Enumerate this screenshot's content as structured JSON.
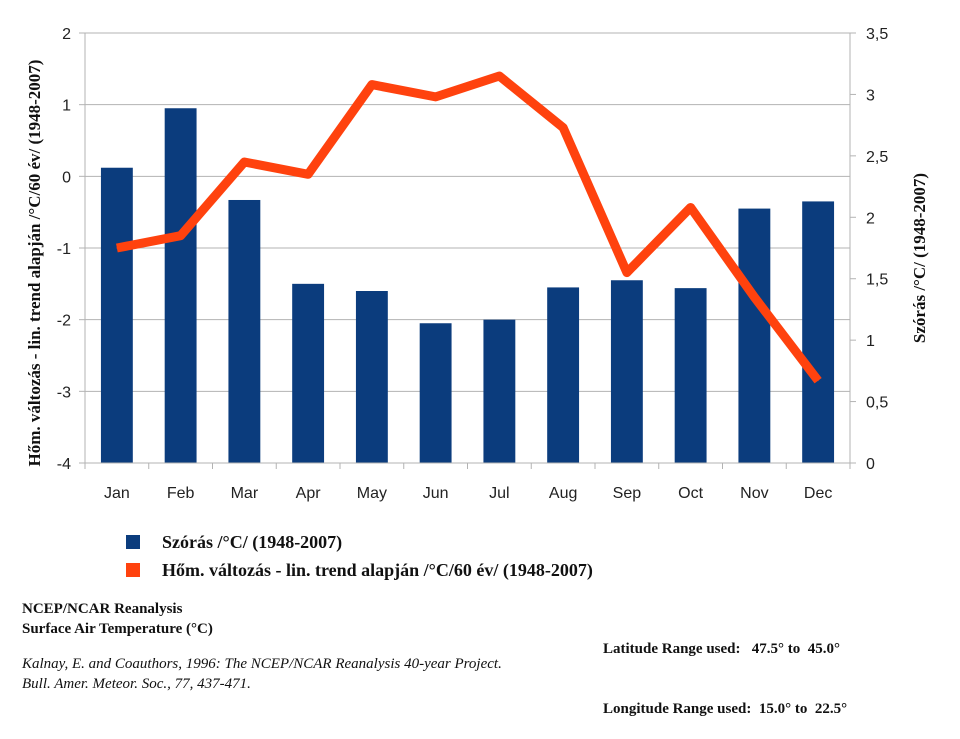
{
  "chart_data": {
    "type": "bar+line",
    "categories": [
      "Jan",
      "Feb",
      "Mar",
      "Apr",
      "May",
      "Jun",
      "Jul",
      "Aug",
      "Sep",
      "Oct",
      "Nov",
      "Dec"
    ],
    "series": [
      {
        "name": "Szórás /°C/ (1948-2007)",
        "type": "bar",
        "axis": "left",
        "color": "#0b3c7d",
        "values": [
          0.12,
          0.95,
          -0.33,
          -1.5,
          -1.6,
          -2.05,
          -2.0,
          -1.55,
          -1.45,
          -1.56,
          -0.45,
          -0.35
        ]
      },
      {
        "name": "Hőm. változás - lin. trend alapján /°C/60 év/ (1948-2007)",
        "type": "line",
        "axis": "right",
        "color": "#ff420e",
        "values": [
          1.75,
          1.85,
          2.45,
          2.35,
          3.08,
          2.98,
          3.15,
          2.73,
          1.55,
          2.08,
          1.35,
          0.67
        ]
      }
    ],
    "left_axis": {
      "title": "Hőm. változás - lin. trend alapján /°C/60 év/ (1948-2007)",
      "min": -4,
      "max": 2,
      "ticks": [
        "2",
        "1",
        "0",
        "-1",
        "-2",
        "-3",
        "-4"
      ]
    },
    "right_axis": {
      "title": "Szórás /°C/ (1948-2007)",
      "min": 0,
      "max": 3.5,
      "ticks": [
        "3,5",
        "3",
        "2,5",
        "2",
        "1,5",
        "1",
        "0,5",
        "0"
      ]
    },
    "grid": true,
    "legend_position": "bottom"
  },
  "footer": {
    "left_line1": "NCEP/NCAR Reanalysis",
    "left_line2": "Surface Air Temperature (°C)",
    "right_line1": "Latitude Range used:   47.5° to  45.0°",
    "right_line2": "Longitude Range used:  15.0° to  22.5°",
    "citation_line1": "Kalnay, E. and Coauthors, 1996: The NCEP/NCAR Reanalysis 40-year Project.",
    "citation_line2": "Bull. Amer. Meteor. Soc., 77, 437-471."
  }
}
